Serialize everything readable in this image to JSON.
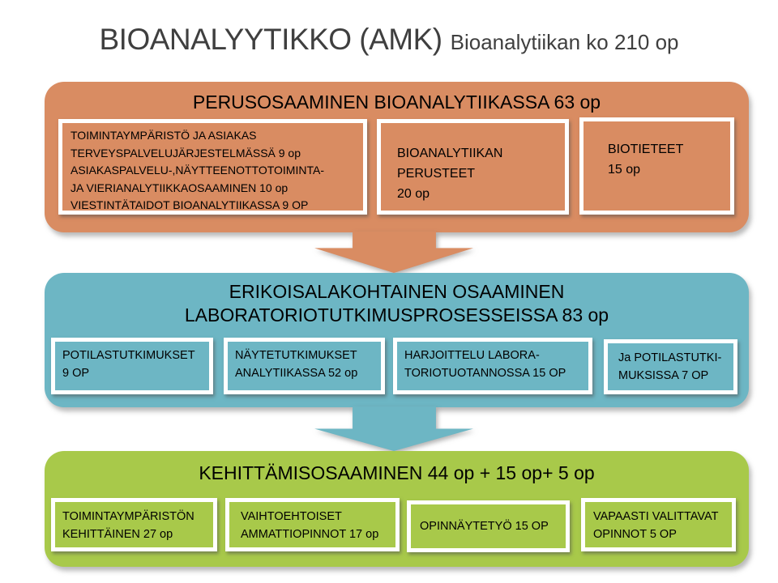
{
  "title": {
    "main": "BIOANALYYTIKKO (AMK)",
    "sub": "Bioanalytiikan ko  210 op"
  },
  "colors": {
    "orange": "#d98c62",
    "teal": "#6db6c4",
    "green": "#a8c94a",
    "title_text": "#3f3f3f",
    "box_text": "#000000"
  },
  "sections": {
    "perus": {
      "header": "PERUSOSAAMINEN BIOANALYTIIKASSA 63 op",
      "boxes": [
        {
          "lines": [
            "TOIMINTAYMPÄRISTÖ JA ASIAKAS",
            "TERVEYSPALVELUJÄRJESTELMÄSSÄ  9 op",
            "ASIAKASPALVELU-,NÄYTTEENOTTOTOIMINTA-",
            "JA  VIERIANALYTIIKKAOSAAMINEN  10 op",
            "VIESTINTÄTAIDOT BIOANALYTIIKASSA  9 OP"
          ]
        },
        {
          "lines": [
            "BIOANALYTIIKAN",
            "PERUSTEET",
            "20 op"
          ]
        },
        {
          "lines": [
            "BIOTIETEET",
            "15 op"
          ]
        }
      ]
    },
    "erikois": {
      "header_lines": [
        "ERIKOISALAKOHTAINEN OSAAMINEN",
        "LABORATORIOTUTKIMUSPROSESSEISSA  83 op"
      ],
      "boxes": [
        {
          "lines": [
            "POTILASTUTKIMUKSET",
            "9 OP"
          ]
        },
        {
          "lines": [
            "NÄYTETUTKIMUKSET",
            "ANALYTIIKASSA 52  op"
          ]
        },
        {
          "lines": [
            "HARJOITTELU  LABORA-",
            "TORIOTUOTANNOSSA  15 OP"
          ]
        },
        {
          "lines": [
            "Ja  POTILASTUTKI-",
            "MUKSISSA  7 OP"
          ]
        }
      ]
    },
    "kehittamis": {
      "header": "KEHITTÄMISOSAAMINEN  44  op  + 15 op+ 5 op",
      "boxes": [
        {
          "lines": [
            "TOIMINTAYMPÄRISTÖN",
            "KEHITTÄINEN 27 op"
          ]
        },
        {
          "lines": [
            "VAIHTOEHTOISET",
            "AMMATTIOPINNOT  17 op"
          ]
        },
        {
          "lines": [
            "OPINNÄYTETYÖ  15 OP"
          ]
        },
        {
          "lines": [
            "VAPAASTI VALITTAVAT",
            "OPINNOT  5 OP"
          ]
        }
      ]
    }
  }
}
